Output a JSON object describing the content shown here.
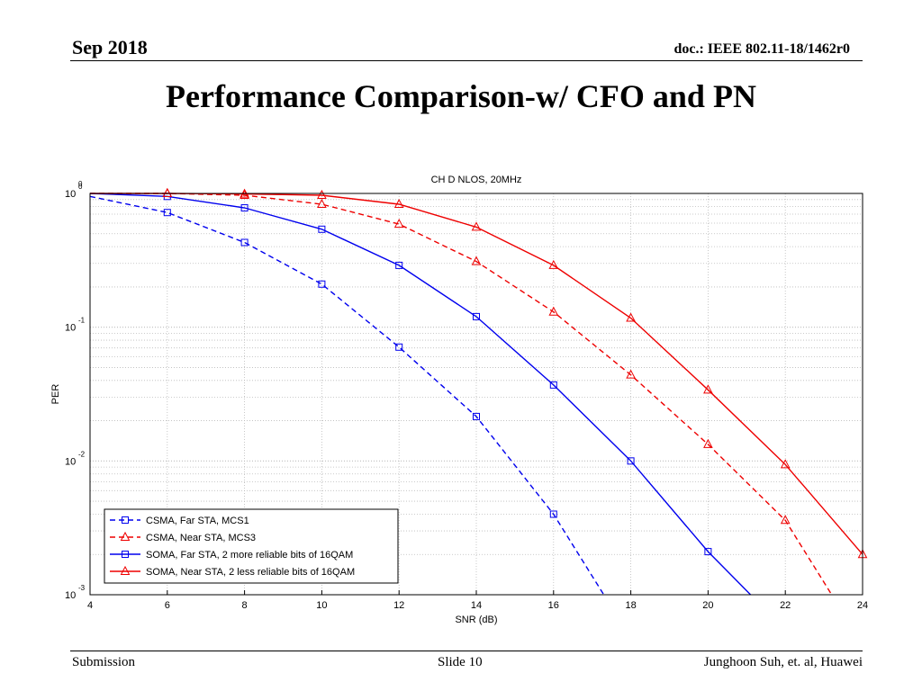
{
  "header": {
    "date": "Sep 2018",
    "doc_id": "doc.: IEEE 802.11-18/1462r0"
  },
  "slide_title": "Performance Comparison-w/ CFO and PN",
  "footer": {
    "left": "Submission",
    "center": "Slide 10",
    "right": "Junghoon Suh, et. al, Huawei"
  },
  "chart_data": {
    "type": "line",
    "title": "CH D NLOS, 20MHz",
    "xlabel": "SNR (dB)",
    "ylabel": "PER",
    "xlim": [
      4,
      24
    ],
    "ylim": [
      0.001,
      1
    ],
    "yscale": "log",
    "x_ticks": [
      "4",
      "6",
      "8",
      "10",
      "12",
      "14",
      "16",
      "18",
      "20",
      "22",
      "24"
    ],
    "y_ticks": [
      {
        "base": "10",
        "exp": "-3"
      },
      {
        "base": "10",
        "exp": "-2"
      },
      {
        "base": "10",
        "exp": "-1"
      },
      {
        "base": "10",
        "exp": "0"
      }
    ],
    "y_top_label": "0",
    "grid": true,
    "legend_position": "bottom-left",
    "series": [
      {
        "name": "CSMA, Far STA, MCS1",
        "color": "#0000ee",
        "dash": true,
        "marker": "square",
        "x": [
          4,
          6,
          8,
          10,
          12,
          14,
          16,
          17.3
        ],
        "y": [
          0.95,
          0.72,
          0.43,
          0.21,
          0.071,
          0.0215,
          0.004,
          0.001
        ],
        "markers_x": [
          6,
          8,
          10,
          12,
          14,
          16
        ]
      },
      {
        "name": "CSMA, Near STA, MCS3",
        "color": "#ee0000",
        "dash": true,
        "marker": "triangle",
        "x": [
          4,
          6,
          8,
          10,
          12,
          14,
          16,
          18,
          20,
          22,
          23.2
        ],
        "y": [
          1.0,
          1.0,
          0.97,
          0.83,
          0.59,
          0.31,
          0.13,
          0.044,
          0.0133,
          0.0036,
          0.001
        ],
        "markers_x": [
          6,
          8,
          10,
          12,
          14,
          16,
          18,
          20,
          22
        ]
      },
      {
        "name": "SOMA, Far STA, 2 more reliable bits of 16QAM",
        "color": "#0000ee",
        "dash": false,
        "marker": "square",
        "x": [
          4,
          6,
          8,
          10,
          12,
          14,
          16,
          18,
          20,
          21.1
        ],
        "y": [
          1.0,
          0.95,
          0.78,
          0.54,
          0.29,
          0.12,
          0.037,
          0.01,
          0.0021,
          0.001
        ],
        "markers_x": [
          6,
          8,
          10,
          12,
          14,
          16,
          18,
          20
        ]
      },
      {
        "name": "SOMA, Near STA, 2 less reliable bits of 16QAM",
        "color": "#ee0000",
        "dash": false,
        "marker": "triangle",
        "x": [
          4,
          6,
          8,
          10,
          12,
          14,
          16,
          18,
          20,
          22,
          24
        ],
        "y": [
          1.0,
          1.0,
          0.99,
          0.97,
          0.83,
          0.56,
          0.29,
          0.117,
          0.034,
          0.0094,
          0.002
        ],
        "markers_x": [
          6,
          8,
          10,
          12,
          14,
          16,
          18,
          20,
          22,
          24
        ]
      }
    ]
  }
}
